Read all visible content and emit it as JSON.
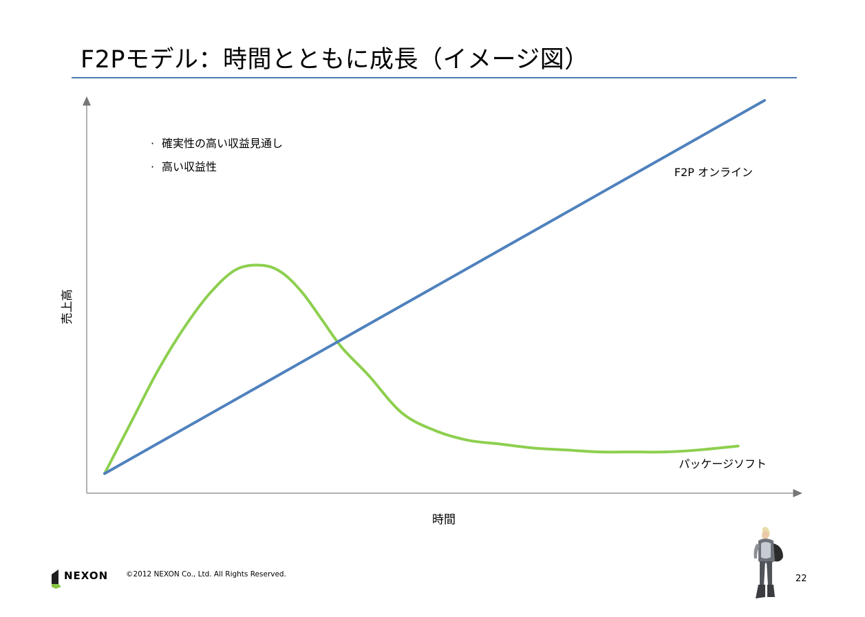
{
  "slide": {
    "title": "F2Pモデル：時間とともに成長（イメージ図）",
    "page_number": "22",
    "accent_color": "#4a78b5"
  },
  "footer": {
    "brand": "NEXON",
    "copyright": "©2012 NEXON Co., Ltd. All Rights Reserved.",
    "logo_icon": "nexon-logo-icon",
    "mascot_icon": "character-figure-icon"
  },
  "chart_data": {
    "type": "line",
    "title": "",
    "xlabel": "時間",
    "ylabel": "売上高",
    "ticks": false,
    "grid": false,
    "xlim": [
      0,
      100
    ],
    "ylim": [
      0,
      100
    ],
    "bullets": [
      "確実性の高い収益見通し",
      "高い収益性"
    ],
    "series": [
      {
        "name": "F2P オンライン",
        "color": "#4f81bd",
        "x": [
          0,
          100
        ],
        "y": [
          5,
          100
        ]
      },
      {
        "name": "パッケージソフト",
        "color": "#8dcf4f",
        "x": [
          0,
          4,
          8,
          12,
          16,
          20,
          24,
          27,
          30,
          33,
          36,
          40,
          45,
          50,
          55,
          60,
          65,
          70,
          75,
          80,
          85,
          90,
          96
        ],
        "y": [
          5,
          18,
          31,
          42,
          51,
          57,
          58,
          56,
          51,
          44,
          37,
          30,
          20.5,
          16,
          13.5,
          12.5,
          11.5,
          11,
          10.5,
          10.5,
          10.5,
          11,
          12
        ]
      }
    ]
  }
}
